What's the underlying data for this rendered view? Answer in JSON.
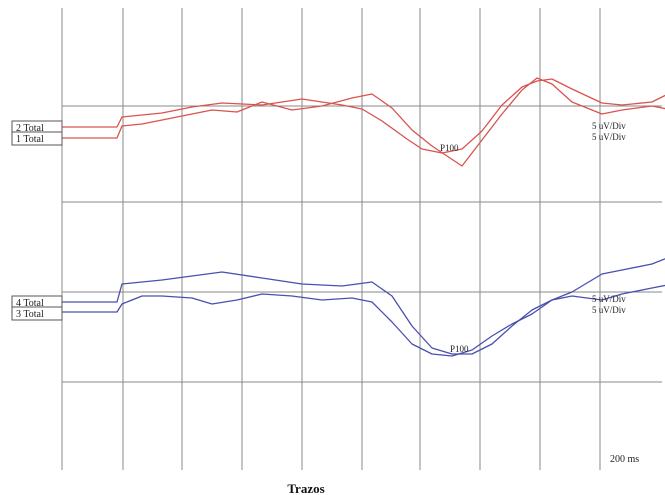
{
  "chart_data": {
    "type": "line",
    "xlabel": "Trazos",
    "time_scale": "200 ms",
    "grid": true,
    "top_right_text": "",
    "groups": [
      {
        "series": [
          {
            "name": "2 Total",
            "color": "#d9534f",
            "sensitivity": "5 uV/Div",
            "peak_label": "P100",
            "peak_x": 420,
            "points": [
              [
                0,
                0
              ],
              [
                55,
                0
              ],
              [
                60,
                -10
              ],
              [
                80,
                -12
              ],
              [
                100,
                -14
              ],
              [
                130,
                -20
              ],
              [
                160,
                -24
              ],
              [
                200,
                -22
              ],
              [
                240,
                -28
              ],
              [
                280,
                -22
              ],
              [
                300,
                -18
              ],
              [
                320,
                -6
              ],
              [
                345,
                12
              ],
              [
                360,
                22
              ],
              [
                380,
                26
              ],
              [
                400,
                22
              ],
              [
                420,
                4
              ],
              [
                440,
                -22
              ],
              [
                460,
                -40
              ],
              [
                475,
                -46
              ],
              [
                490,
                -48
              ],
              [
                510,
                -38
              ],
              [
                540,
                -24
              ],
              [
                560,
                -22
              ],
              [
                590,
                -25
              ],
              [
                610,
                -35
              ]
            ]
          },
          {
            "name": "1 Total",
            "color": "#d9534f",
            "sensitivity": "5 uV/Div",
            "peak_label": "",
            "points": [
              [
                0,
                0
              ],
              [
                55,
                0
              ],
              [
                60,
                -12
              ],
              [
                80,
                -14
              ],
              [
                100,
                -18
              ],
              [
                130,
                -24
              ],
              [
                150,
                -28
              ],
              [
                175,
                -26
              ],
              [
                200,
                -36
              ],
              [
                230,
                -28
              ],
              [
                260,
                -32
              ],
              [
                290,
                -40
              ],
              [
                310,
                -44
              ],
              [
                330,
                -30
              ],
              [
                350,
                -8
              ],
              [
                370,
                8
              ],
              [
                400,
                28
              ],
              [
                420,
                2
              ],
              [
                440,
                -24
              ],
              [
                460,
                -48
              ],
              [
                475,
                -60
              ],
              [
                490,
                -54
              ],
              [
                510,
                -36
              ],
              [
                540,
                -24
              ],
              [
                560,
                -28
              ],
              [
                590,
                -32
              ],
              [
                610,
                -28
              ]
            ]
          }
        ]
      },
      {
        "series": [
          {
            "name": "4 Total",
            "color": "#4a4fb0",
            "sensitivity": "5 uV/Div",
            "peak_label": "P100",
            "peak_x": 425,
            "points": [
              [
                0,
                0
              ],
              [
                55,
                0
              ],
              [
                60,
                -18
              ],
              [
                80,
                -20
              ],
              [
                100,
                -22
              ],
              [
                130,
                -26
              ],
              [
                160,
                -30
              ],
              [
                200,
                -24
              ],
              [
                240,
                -18
              ],
              [
                280,
                -16
              ],
              [
                310,
                -20
              ],
              [
                330,
                -6
              ],
              [
                350,
                24
              ],
              [
                370,
                46
              ],
              [
                390,
                52
              ],
              [
                410,
                52
              ],
              [
                430,
                42
              ],
              [
                450,
                24
              ],
              [
                470,
                8
              ],
              [
                490,
                -2
              ],
              [
                510,
                -6
              ],
              [
                540,
                -2
              ],
              [
                560,
                -8
              ],
              [
                590,
                -14
              ],
              [
                610,
                -18
              ]
            ]
          },
          {
            "name": "3 Total",
            "color": "#4a4fb0",
            "sensitivity": "5 uV/Div",
            "peak_label": "",
            "points": [
              [
                0,
                0
              ],
              [
                55,
                0
              ],
              [
                60,
                -8
              ],
              [
                80,
                -16
              ],
              [
                100,
                -16
              ],
              [
                130,
                -14
              ],
              [
                150,
                -8
              ],
              [
                175,
                -12
              ],
              [
                200,
                -18
              ],
              [
                230,
                -16
              ],
              [
                260,
                -12
              ],
              [
                290,
                -14
              ],
              [
                310,
                -10
              ],
              [
                330,
                10
              ],
              [
                350,
                32
              ],
              [
                370,
                42
              ],
              [
                390,
                44
              ],
              [
                410,
                38
              ],
              [
                430,
                24
              ],
              [
                450,
                12
              ],
              [
                470,
                2
              ],
              [
                490,
                -12
              ],
              [
                510,
                -20
              ],
              [
                540,
                -38
              ],
              [
                560,
                -42
              ],
              [
                590,
                -48
              ],
              [
                610,
                -56
              ]
            ]
          }
        ]
      }
    ]
  }
}
